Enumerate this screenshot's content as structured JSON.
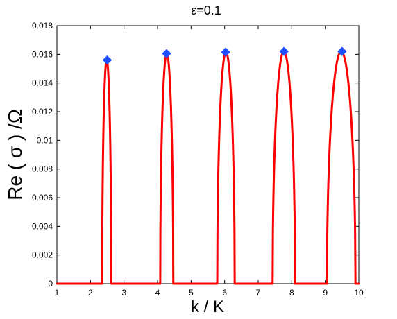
{
  "chart_data": {
    "type": "line",
    "title": "ε=0.1",
    "xlabel": "k / K",
    "ylabel": "Re ( σ ) /Ω",
    "xlim": [
      1,
      10
    ],
    "ylim": [
      0,
      0.018
    ],
    "xticks": [
      1,
      2,
      3,
      4,
      5,
      6,
      7,
      8,
      9,
      10
    ],
    "yticks": [
      0,
      0.002,
      0.004,
      0.006,
      0.008,
      0.01,
      0.012,
      0.014,
      0.016,
      0.018
    ],
    "xtick_labels": [
      "1",
      "2",
      "3",
      "4",
      "5",
      "6",
      "7",
      "8",
      "9",
      "10"
    ],
    "ytick_labels": [
      "0",
      "0.002",
      "0.004",
      "0.006",
      "0.008",
      "0.01",
      "0.012",
      "0.014",
      "0.016",
      "0.018"
    ],
    "grid": false,
    "colors": {
      "curve": "#ff0000",
      "marker": "#1f4fff",
      "axes": "#000000"
    },
    "series": [
      {
        "style": "line",
        "bands": [
          {
            "start": 2.35,
            "end": 2.62,
            "peak": 0.0156
          },
          {
            "start": 4.08,
            "end": 4.47,
            "peak": 0.01605
          },
          {
            "start": 5.78,
            "end": 6.3,
            "peak": 0.01615
          },
          {
            "start": 7.43,
            "end": 8.1,
            "peak": 0.0162
          },
          {
            "start": 9.05,
            "end": 9.9,
            "peak": 0.0162
          }
        ]
      },
      {
        "style": "markers",
        "marker": "diamond",
        "points": [
          {
            "x": 2.5,
            "y": 0.0156
          },
          {
            "x": 4.27,
            "y": 0.01605
          },
          {
            "x": 6.03,
            "y": 0.01615
          },
          {
            "x": 7.77,
            "y": 0.0162
          },
          {
            "x": 9.5,
            "y": 0.0162
          }
        ]
      }
    ]
  }
}
